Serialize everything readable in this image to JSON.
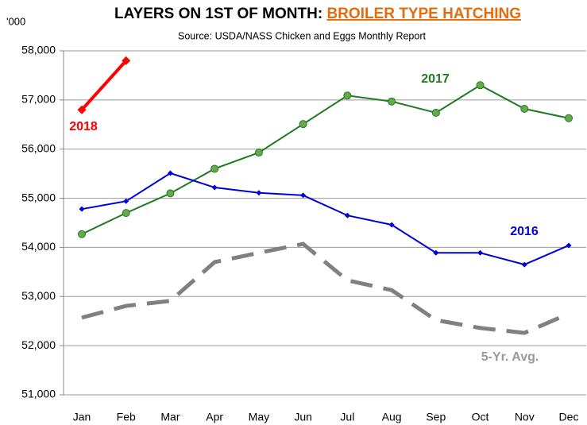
{
  "chart_data": {
    "type": "line",
    "title": "LAYERS ON 1ST OF MONTH: ",
    "title_highlight": "BROILER TYPE HATCHING",
    "subtitle": "Source: USDA/NASS Chicken and Eggs Monthly Report",
    "y_unit": "'000",
    "categories": [
      "Jan",
      "Feb",
      "Mar",
      "Apr",
      "May",
      "Jun",
      "Jul",
      "Aug",
      "Sep",
      "Oct",
      "Nov",
      "Dec"
    ],
    "ylim": [
      51000,
      58000
    ],
    "yticks": [
      {
        "value": 51000,
        "label": "51,000"
      },
      {
        "value": 52000,
        "label": "52,000"
      },
      {
        "value": 53000,
        "label": "53,000"
      },
      {
        "value": 54000,
        "label": "54,000"
      },
      {
        "value": 55000,
        "label": "55,000"
      },
      {
        "value": 56000,
        "label": "56,000"
      },
      {
        "value": 57000,
        "label": "57,000"
      },
      {
        "value": 58000,
        "label": "58,000"
      }
    ],
    "grid": true,
    "series": [
      {
        "name": "2018",
        "color": "#ff0000",
        "marker": "diamond",
        "dashed": false,
        "values": [
          56800,
          57800,
          null,
          null,
          null,
          null,
          null,
          null,
          null,
          null,
          null,
          null
        ]
      },
      {
        "name": "2017",
        "color": "#1e7a1e",
        "marker": "circle",
        "dashed": false,
        "values": [
          54270,
          54700,
          55100,
          55600,
          55930,
          56510,
          57090,
          56970,
          56740,
          57300,
          56820,
          56630
        ]
      },
      {
        "name": "2016",
        "color": "#0000dd",
        "marker": "diamond",
        "dashed": false,
        "values": [
          54780,
          54940,
          55510,
          55220,
          55110,
          55060,
          54650,
          54460,
          53890,
          53890,
          53650,
          54040
        ]
      },
      {
        "name": "5-Yr. Avg.",
        "color": "#808080",
        "marker": "none",
        "dashed": true,
        "values": [
          52570,
          52810,
          52910,
          53700,
          53890,
          54070,
          53330,
          53130,
          52520,
          52360,
          52260,
          52650
        ]
      }
    ]
  }
}
